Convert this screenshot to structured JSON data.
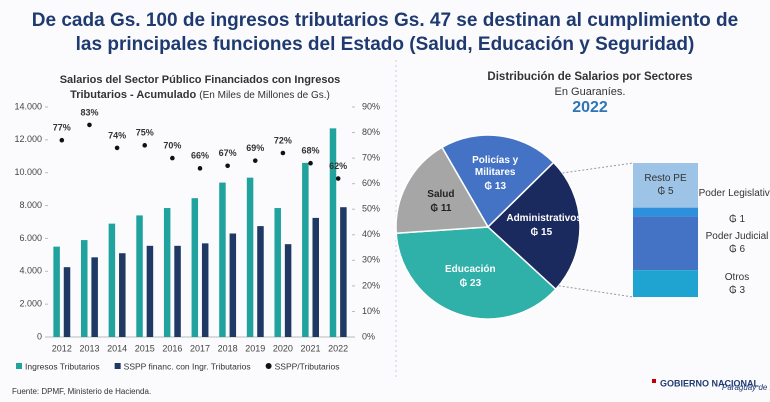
{
  "header": {
    "title_lines": [
      "De cada Gs. 100 de ingresos tributarios Gs. 47 se destinan al cumplimiento de",
      "las principales funciones del Estado (Salud, Educación y Seguridad)"
    ]
  },
  "chart_data": [
    {
      "type": "bar",
      "title": "Salarios del Sector Público Financiados con Ingresos Tributarios - Acumulado",
      "subtitle": "(En Miles de Millones de Gs.)",
      "categories": [
        "2012",
        "2013",
        "2014",
        "2015",
        "2016",
        "2017",
        "2018",
        "2019",
        "2020",
        "2021",
        "2022"
      ],
      "series": [
        {
          "name": "Ingresos Tributarios",
          "type": "bar",
          "color": "#20a39e",
          "values": [
            5500,
            5900,
            6900,
            7400,
            7850,
            8450,
            9400,
            9700,
            7850,
            10600,
            12700
          ]
        },
        {
          "name": "SSPP financ. con Ingr. Tributarios",
          "type": "bar",
          "color": "#1f3864",
          "values": [
            4250,
            4850,
            5100,
            5550,
            5550,
            5700,
            6300,
            6750,
            5650,
            7250,
            7900
          ]
        },
        {
          "name": "SSPP/Tributarios",
          "type": "scatter",
          "axis": "y2",
          "color": "#111111",
          "values": [
            77,
            83,
            74,
            75,
            70,
            66,
            67,
            69,
            72,
            68,
            62
          ],
          "value_labels": [
            "77%",
            "83%",
            "74%",
            "75%",
            "70%",
            "66%",
            "67%",
            "69%",
            "72%",
            "68%",
            "62%"
          ]
        }
      ],
      "ylim": [
        0,
        14000
      ],
      "yticks": [
        0,
        {
          "value": 2000,
          "label": "2.000"
        },
        {
          "value": 4000,
          "label": "4.000"
        },
        {
          "value": 6000,
          "label": "6.000"
        },
        {
          "value": 8000,
          "label": "8.000"
        },
        {
          "value": 10000,
          "label": "10.000"
        },
        {
          "value": 12000,
          "label": "12.000"
        },
        {
          "value": 14000,
          "label": "14.000"
        }
      ],
      "y2lim": [
        0,
        90
      ],
      "y2ticks": [
        {
          "value": 0,
          "label": "0%"
        },
        {
          "value": 10,
          "label": "10%"
        },
        {
          "value": 20,
          "label": "20%"
        },
        {
          "value": 30,
          "label": "30%"
        },
        {
          "value": 40,
          "label": "40%"
        },
        {
          "value": 50,
          "label": "50%"
        },
        {
          "value": 60,
          "label": "60%"
        },
        {
          "value": 70,
          "label": "70%"
        },
        {
          "value": 80,
          "label": "80%"
        },
        {
          "value": 90,
          "label": "90%"
        }
      ],
      "grid": false,
      "legend": "bottom"
    },
    {
      "type": "pie",
      "title": "Distribución de Salarios por Sectores",
      "subtitle": "En Guaraníes.",
      "year": "2022",
      "categories": [
        "Policías y Militares",
        "Administrativos",
        "Educación",
        "Salud"
      ],
      "values": [
        13,
        15,
        23,
        11
      ],
      "value_labels": [
        "₲ 13",
        "₲ 15",
        "₲ 23",
        "₲ 11"
      ],
      "colors": [
        "#4472c4",
        "#1b2a5e",
        "#2fb0a8",
        "#a6a6a6"
      ],
      "breakdown": {
        "categories": [
          "Resto PE",
          "Poder Legislativo",
          "Poder Judicial",
          "Otros"
        ],
        "values": [
          5,
          1,
          6,
          3
        ],
        "value_labels": [
          "₲ 5",
          "₲ 1",
          "₲ 6",
          "₲ 3"
        ],
        "colors": [
          "#9dc3e6",
          "#2e8fdc",
          "#4472c4",
          "#1fa3d0"
        ]
      }
    }
  ],
  "footer": {
    "source": "Fuente: DPMF, Ministerio de Hacienda.",
    "logo": "GOBIERNO NACIONAL",
    "slogan": "Paraguay de la gente"
  }
}
